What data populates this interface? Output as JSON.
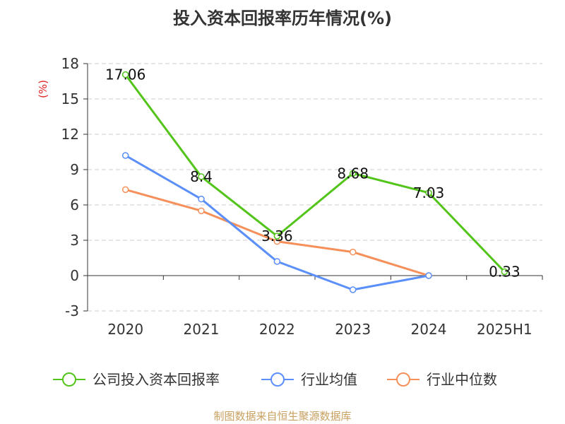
{
  "title": "投入资本回报率历年情况(%)",
  "source": "制图数据来自恒生聚源数据库",
  "chart_data": {
    "type": "line",
    "title": "投入资本回报率历年情况(%)",
    "ylabel": "(%)",
    "xlabel": "",
    "ylim": [
      -3,
      18
    ],
    "yticks": [
      -3,
      0,
      3,
      6,
      9,
      12,
      15,
      18
    ],
    "grid": true,
    "legend_position": "bottom",
    "categories": [
      "2020",
      "2021",
      "2022",
      "2023",
      "2024",
      "2025H1"
    ],
    "series": [
      {
        "name": "公司投入资本回报率",
        "color": "#52c41a",
        "values": [
          17.06,
          8.4,
          3.36,
          8.68,
          7.03,
          0.33
        ],
        "labels": [
          "17.06",
          "8.4",
          "3.36",
          "8.68",
          "7.03",
          "0.33"
        ]
      },
      {
        "name": "行业均值",
        "color": "#5b8ff9",
        "values": [
          10.2,
          6.5,
          1.2,
          -1.2,
          0.0,
          null
        ]
      },
      {
        "name": "行业中位数",
        "color": "#f6905b",
        "values": [
          7.3,
          5.5,
          2.9,
          2.0,
          0.0,
          null
        ]
      }
    ]
  }
}
